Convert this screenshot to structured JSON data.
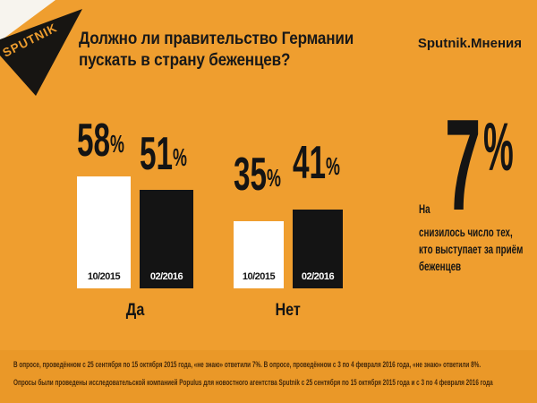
{
  "brand": {
    "logo_text": "SPUTNIK",
    "program_label": "Sputnik.Мнения"
  },
  "header": {
    "title": "Должно ли правительство Германии\nпускать в страну беженцев?"
  },
  "chart_data": {
    "type": "bar",
    "title": "Должно ли правительство Германии пускать в страну беженцев?",
    "categories": [
      "Да",
      "Нет"
    ],
    "series": [
      {
        "name": "10/2015",
        "color": "#FFFFFF",
        "values": [
          58,
          35
        ]
      },
      {
        "name": "02/2016",
        "color": "#141414",
        "values": [
          51,
          41
        ]
      }
    ],
    "unit": "%",
    "ylim": [
      0,
      100
    ],
    "grid": "off",
    "axis": "none",
    "legend_position": "inside-bars"
  },
  "highlight": {
    "prefix": "На",
    "value": "7",
    "unit": "%",
    "description": "снизилось число тех,\nкто выступает за приём\nбеженцев"
  },
  "footnotes": {
    "line1": "В опросе, проведённом с 25 сентября по 15 октября 2015 года, «не знаю» ответили 7%. В опросе, проведённом с 3 по 4 февраля 2016 года, «не знаю» ответили 8%.",
    "line2": "Опросы были проведены исследовательской компанией Populus для новостного агентства Sputnik с 25 сентября по 15 октября 2015 года и с 3 по 4 февраля 2016 года"
  },
  "colors": {
    "background": "#EF9E2F",
    "footer_band": "#EA9828",
    "bar_white": "#FFFFFF",
    "bar_black": "#141414",
    "text": "#161616",
    "footnote_text": "#45290A",
    "logo_black": "#171512"
  }
}
